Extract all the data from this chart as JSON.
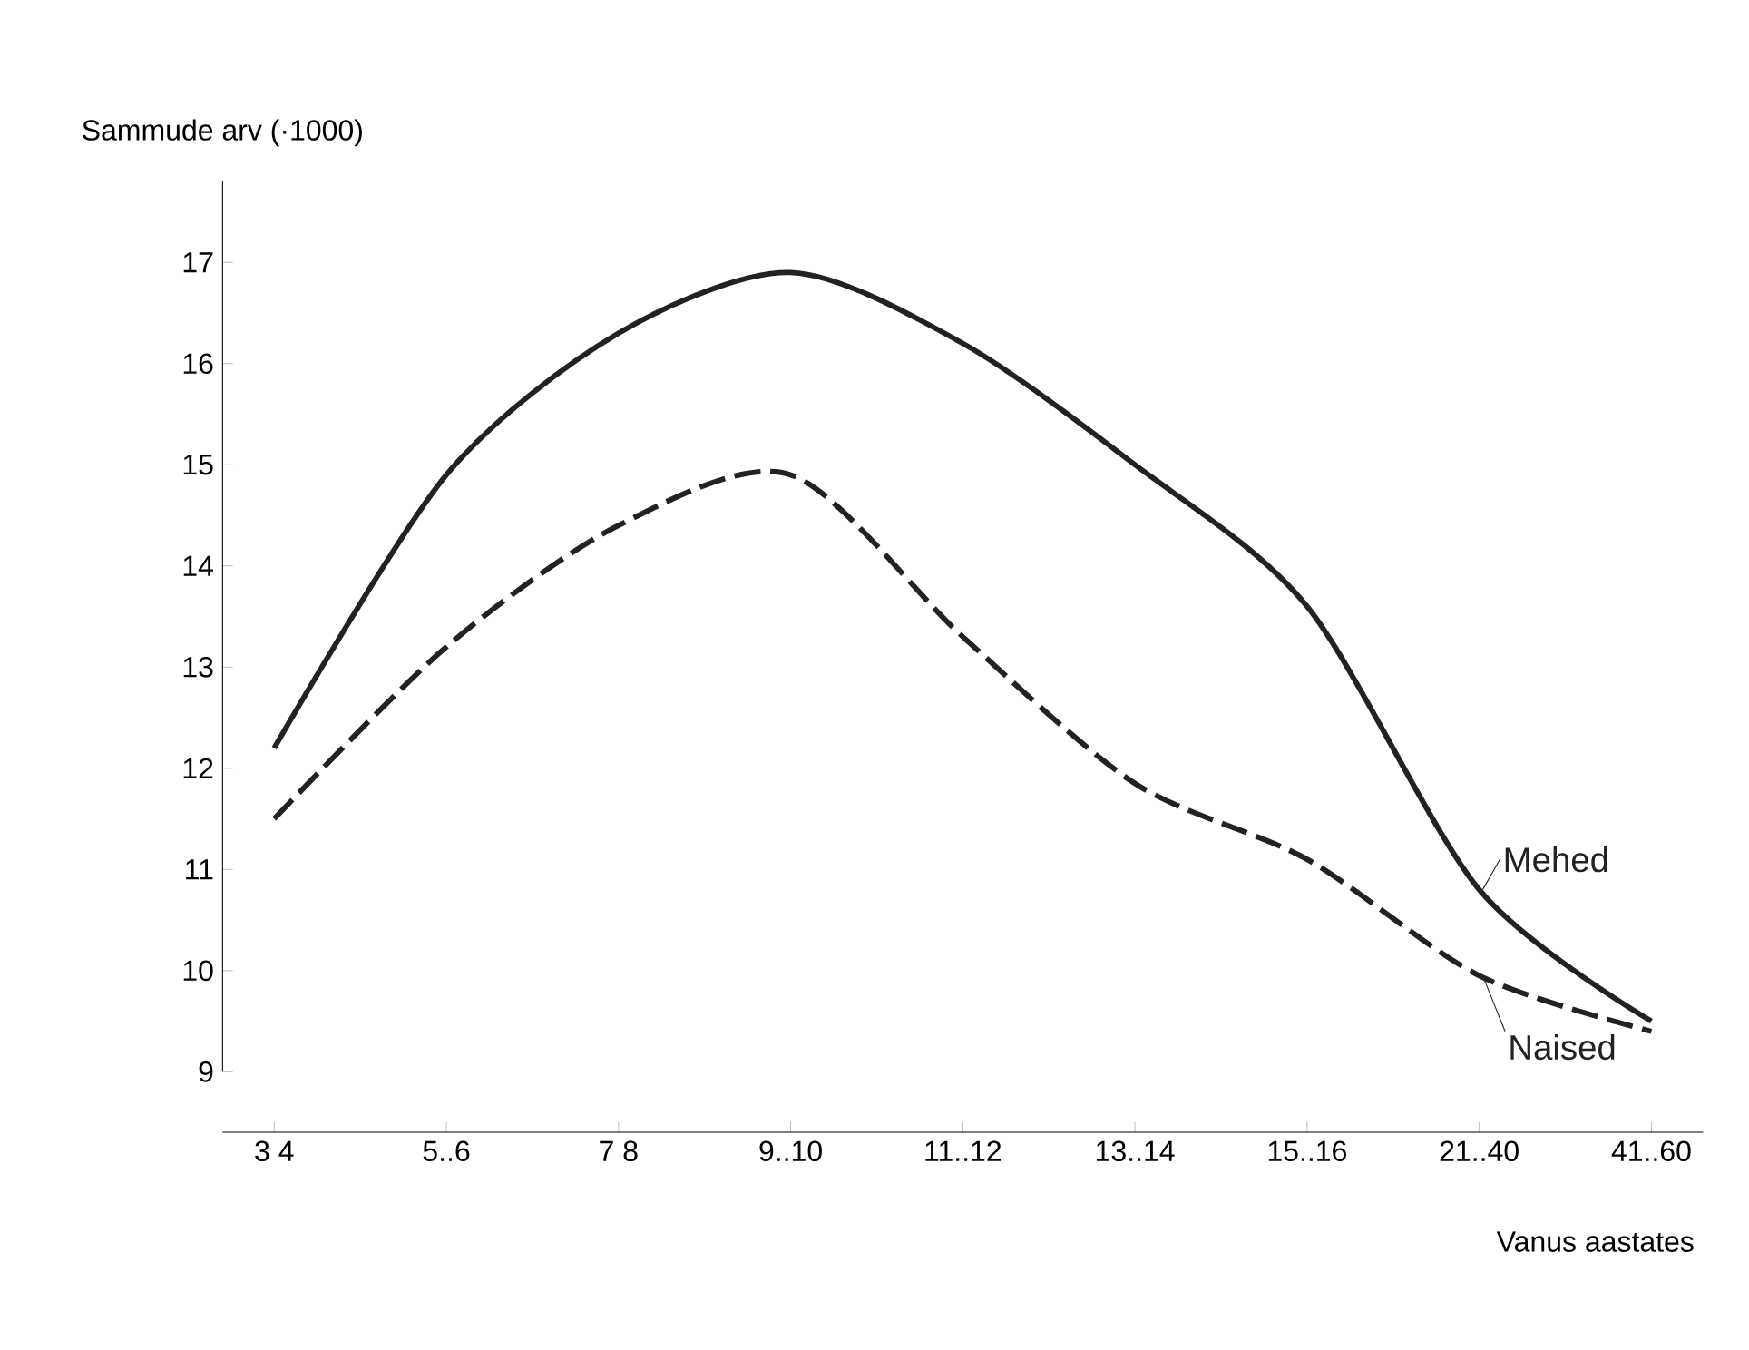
{
  "chart_data": {
    "type": "line",
    "ylabel": "Sammude arv (·1000)",
    "xlabel": "Vanus aastates",
    "categories": [
      "3 4",
      "5..6",
      "7 8",
      "9..10",
      "11..12",
      "13..14",
      "15..16",
      "21..40",
      "41..60"
    ],
    "series": [
      {
        "name": "Mehed",
        "color": "#222222",
        "line_style": "solid",
        "values": [
          12.2,
          14.9,
          16.3,
          16.9,
          16.2,
          15.0,
          13.6,
          10.8,
          9.5
        ]
      },
      {
        "name": "Naised",
        "color": "#222222",
        "line_style": "dashed",
        "values": [
          11.5,
          13.2,
          14.4,
          14.9,
          13.3,
          11.85,
          11.1,
          9.95,
          9.4
        ]
      }
    ],
    "ylim": [
      9,
      17.8
    ],
    "yticks": [
      9,
      10,
      11,
      12,
      13,
      14,
      15,
      16,
      17
    ],
    "grid": false,
    "marker": "none"
  }
}
